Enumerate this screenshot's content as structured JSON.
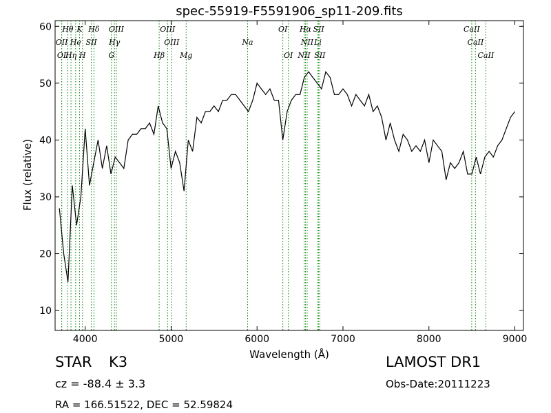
{
  "chart_data": {
    "type": "line",
    "title": "spec-55919-F5591906_sp11-209.fits",
    "xlabel": "Wavelength (Å)",
    "ylabel": "Flux (relative)",
    "xlim": [
      3650,
      9100
    ],
    "ylim": [
      6.5,
      61
    ],
    "xticks": [
      4000,
      5000,
      6000,
      7000,
      8000,
      9000
    ],
    "yticks": [
      10,
      20,
      30,
      40,
      50,
      60
    ],
    "grid": false,
    "line_color": "#000000",
    "line_marker_color": "#008000",
    "series": [
      {
        "x": [
          3700,
          3750,
          3800,
          3850,
          3900,
          3950,
          4000,
          4050,
          4100,
          4150,
          4200,
          4250,
          4300,
          4350,
          4400,
          4450,
          4500,
          4550,
          4600,
          4650,
          4700,
          4750,
          4800,
          4850,
          4900,
          4950,
          5000,
          5050,
          5100,
          5150,
          5200,
          5250,
          5300,
          5350,
          5400,
          5450,
          5500,
          5550,
          5600,
          5650,
          5700,
          5750,
          5800,
          5850,
          5900,
          5950,
          6000,
          6050,
          6100,
          6150,
          6200,
          6250,
          6300,
          6350,
          6400,
          6450,
          6500,
          6550,
          6600,
          6650,
          6700,
          6750,
          6800,
          6850,
          6900,
          6950,
          7000,
          7050,
          7100,
          7150,
          7200,
          7250,
          7300,
          7350,
          7400,
          7450,
          7500,
          7550,
          7600,
          7650,
          7700,
          7750,
          7800,
          7850,
          7900,
          7950,
          8000,
          8050,
          8100,
          8150,
          8200,
          8250,
          8300,
          8350,
          8400,
          8450,
          8500,
          8550,
          8600,
          8650,
          8700,
          8750,
          8800,
          8850,
          8900,
          8950,
          9000
        ],
        "y": [
          28,
          20,
          15,
          32,
          25,
          30,
          42,
          32,
          36,
          40,
          35,
          39,
          34,
          37,
          36,
          35,
          40,
          41,
          41,
          42,
          42,
          43,
          41,
          46,
          43,
          42,
          35,
          38,
          36,
          31,
          40,
          38,
          44,
          43,
          45,
          45,
          46,
          45,
          47,
          47,
          48,
          48,
          47,
          46,
          45,
          47,
          50,
          49,
          48,
          49,
          47,
          47,
          40,
          45,
          47,
          48,
          48,
          51,
          52,
          51,
          50,
          49,
          52,
          51,
          48,
          48,
          49,
          48,
          46,
          48,
          47,
          46,
          48,
          45,
          46,
          44,
          40,
          43,
          40,
          38,
          41,
          40,
          38,
          39,
          38,
          40,
          36,
          40,
          39,
          38,
          33,
          36,
          35,
          36,
          38,
          34,
          34,
          37,
          34,
          37,
          38,
          37,
          39,
          40,
          42,
          44,
          45
        ]
      }
    ],
    "line_markers": [
      {
        "label": "Hθ",
        "x": 3798,
        "row": 0
      },
      {
        "label": "K",
        "x": 3934,
        "row": 0
      },
      {
        "label": "Hδ",
        "x": 4102,
        "row": 0
      },
      {
        "label": "OIII",
        "x": 4363,
        "row": 0
      },
      {
        "label": "OIII",
        "x": 4959,
        "row": 0
      },
      {
        "label": "OI",
        "x": 6300,
        "row": 0
      },
      {
        "label": "Hα",
        "x": 6563,
        "row": 0
      },
      {
        "label": "SII",
        "x": 6717,
        "row": 0
      },
      {
        "label": "CaII",
        "x": 8498,
        "row": 0
      },
      {
        "label": "OII",
        "x": 3727,
        "row": 1
      },
      {
        "label": "He",
        "x": 3889,
        "row": 1
      },
      {
        "label": "SII",
        "x": 4072,
        "row": 1
      },
      {
        "label": "Hγ",
        "x": 4341,
        "row": 1
      },
      {
        "label": "OIII",
        "x": 5007,
        "row": 1
      },
      {
        "label": "Na",
        "x": 5890,
        "row": 1
      },
      {
        "label": "NII",
        "x": 6583,
        "row": 1
      },
      {
        "label": "Li",
        "x": 6708,
        "row": 1
      },
      {
        "label": "CaII",
        "x": 8542,
        "row": 1
      },
      {
        "label": "OI",
        "x": 3727,
        "row": 2
      },
      {
        "label": "Hη",
        "x": 3835,
        "row": 2
      },
      {
        "label": "H",
        "x": 3969,
        "row": 2
      },
      {
        "label": "G",
        "x": 4305,
        "row": 2
      },
      {
        "label": "Hβ",
        "x": 4861,
        "row": 2
      },
      {
        "label": "Mg",
        "x": 5175,
        "row": 2
      },
      {
        "label": "OI",
        "x": 6364,
        "row": 2
      },
      {
        "label": "NII",
        "x": 6548,
        "row": 2
      },
      {
        "label": "SII",
        "x": 6731,
        "row": 2
      },
      {
        "label": "CaII",
        "x": 8662,
        "row": 2
      }
    ]
  },
  "info": {
    "object_class": "STAR",
    "subclass": "K3",
    "survey": "LAMOST DR1",
    "cz": "cz = -88.4 ± 3.3",
    "obs_date": "Obs-Date:20111223",
    "radec": "RA = 166.51522, DEC = 52.59824"
  }
}
